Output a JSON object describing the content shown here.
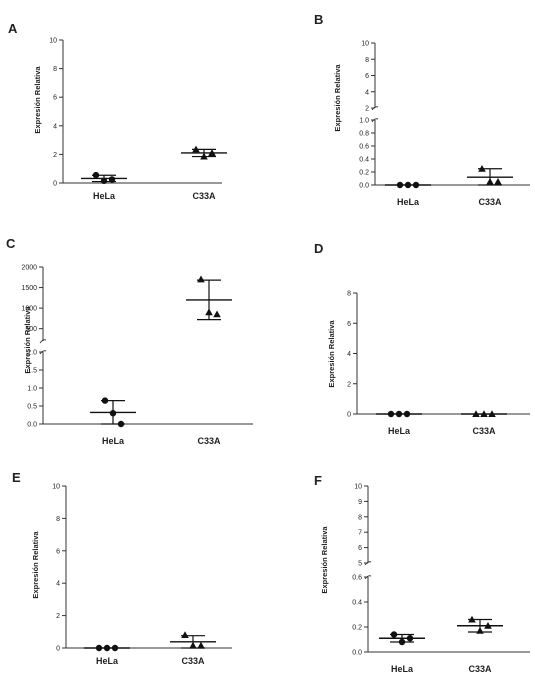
{
  "chart_data": [
    {
      "panel": "A",
      "type": "scatter",
      "ylabel": "Expresión Relativa",
      "categories": [
        "HeLa",
        "C33A"
      ],
      "ylim": [
        0,
        10
      ],
      "yticks": [
        "0",
        "2",
        "4",
        "6",
        "8",
        "10"
      ],
      "points": [
        [
          0.55,
          0.15,
          0.25
        ],
        [
          2.35,
          1.85,
          2.1
        ]
      ],
      "mean": [
        0.32,
        2.1
      ],
      "sd": [
        0.22,
        0.25
      ],
      "markers": [
        "circle",
        "triangle"
      ]
    },
    {
      "panel": "B",
      "type": "scatter",
      "ylabel": "Expresión Relativa",
      "categories": [
        "HeLa",
        "C33A"
      ],
      "ylim": [
        0,
        10
      ],
      "y_break": [
        1,
        2
      ],
      "yticks": [
        "0.0",
        "0.2",
        "0.4",
        "0.6",
        "0.8",
        "1.0",
        "2",
        "4",
        "6",
        "8",
        "10"
      ],
      "points": [
        [
          0.0,
          0.0,
          0.0
        ],
        [
          0.25,
          0.05,
          0.05
        ]
      ],
      "mean": [
        0.0,
        0.12
      ],
      "sd": [
        0.0,
        0.13
      ],
      "markers": [
        "circle",
        "triangle"
      ]
    },
    {
      "panel": "C",
      "type": "scatter",
      "ylabel": "Expresión Relativa",
      "categories": [
        "HeLa",
        "C33A"
      ],
      "ylim": [
        0,
        2000
      ],
      "y_break": [
        2,
        200
      ],
      "yticks": [
        "0.0",
        "0.5",
        "1.0",
        "1.5",
        "2.0",
        "500",
        "1000",
        "1500",
        "2000"
      ],
      "points": [
        [
          0.65,
          0.3,
          0.0
        ],
        [
          1700,
          900,
          850
        ]
      ],
      "mean": [
        0.32,
        1200
      ],
      "sd": [
        0.33,
        480
      ],
      "markers": [
        "circle",
        "triangle"
      ]
    },
    {
      "panel": "D",
      "type": "scatter",
      "ylabel": "Expresión Relativa",
      "categories": [
        "HeLa",
        "C33A"
      ],
      "ylim": [
        0,
        8
      ],
      "yticks": [
        "0",
        "2",
        "4",
        "6",
        "8"
      ],
      "points": [
        [
          0.0,
          0.0,
          0.0
        ],
        [
          0.0,
          0.0,
          0.0
        ]
      ],
      "mean": [
        0.0,
        0.0
      ],
      "sd": [
        0.0,
        0.0
      ],
      "markers": [
        "circle",
        "triangle"
      ]
    },
    {
      "panel": "E",
      "type": "scatter",
      "ylabel": "Expresión Relativa",
      "categories": [
        "HeLa",
        "C33A"
      ],
      "ylim": [
        0,
        10
      ],
      "yticks": [
        "0",
        "2",
        "4",
        "6",
        "8",
        "10"
      ],
      "points": [
        [
          0.0,
          0.0,
          0.0
        ],
        [
          0.8,
          0.15,
          0.15
        ]
      ],
      "mean": [
        0.0,
        0.38
      ],
      "sd": [
        0.0,
        0.38
      ],
      "markers": [
        "circle",
        "triangle"
      ]
    },
    {
      "panel": "F",
      "type": "scatter",
      "ylabel": "Expresión Relativa",
      "categories": [
        "HeLa",
        "C33A"
      ],
      "ylim": [
        0,
        10
      ],
      "y_break": [
        0.6,
        5
      ],
      "yticks": [
        "0.0",
        "0.2",
        "0.4",
        "0.6",
        "5",
        "6",
        "7",
        "8",
        "9",
        "10"
      ],
      "points": [
        [
          0.14,
          0.08,
          0.11
        ],
        [
          0.26,
          0.17,
          0.21
        ]
      ],
      "mean": [
        0.11,
        0.21
      ],
      "sd": [
        0.03,
        0.05
      ],
      "markers": [
        "circle",
        "triangle"
      ]
    }
  ]
}
